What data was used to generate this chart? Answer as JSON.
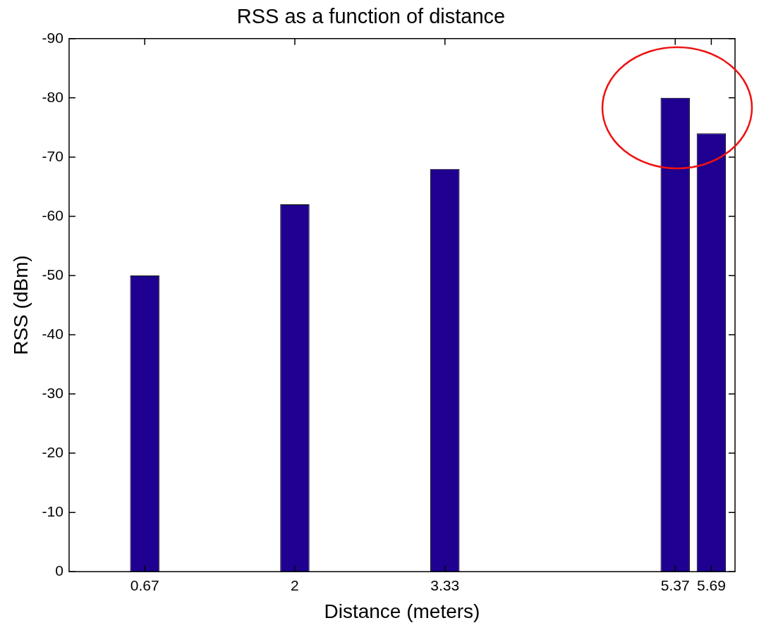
{
  "chart_data": {
    "type": "bar",
    "title": "RSS as a function of distance",
    "xlabel": "Distance (meters)",
    "ylabel": "RSS (dBm)",
    "x": [
      0.67,
      2,
      3.33,
      5.37,
      5.69
    ],
    "values": [
      -50,
      -62,
      -68,
      -80,
      -74
    ],
    "color": "#1f0090",
    "xlim": [
      0,
      5.9
    ],
    "xticks": [
      0.67,
      2,
      3.33,
      5.37,
      5.69
    ],
    "ylim": [
      0,
      -90
    ],
    "yticks": [
      0,
      -10,
      -20,
      -30,
      -40,
      -50,
      -60,
      -70,
      -80,
      -90
    ],
    "grid": false,
    "legend": false
  }
}
